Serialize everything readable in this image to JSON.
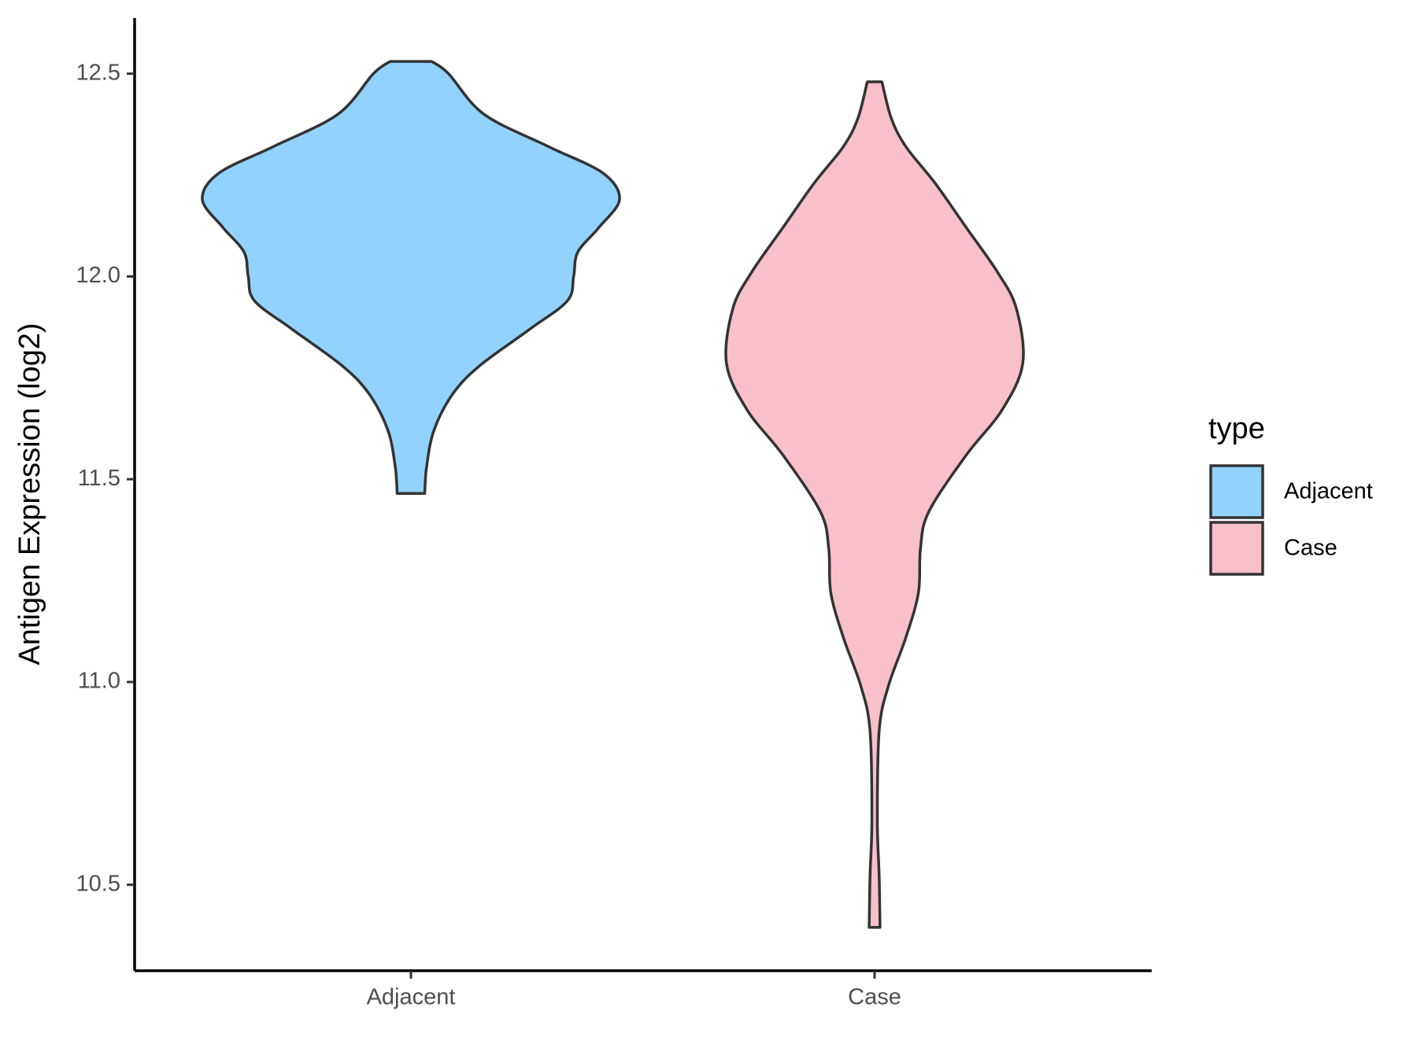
{
  "chart_data": {
    "type": "violin",
    "y_label": "Antigen Expression (log2)",
    "categories": [
      "Adjacent",
      "Case"
    ],
    "legend_title": "type",
    "legend_position": "right",
    "ylim": [
      10.288,
      12.637
    ],
    "yticks": [
      10.5,
      {
        "value": 11,
        "label": "11.0"
      },
      11.5,
      {
        "value": 12,
        "label": "12.0"
      },
      12.5
    ],
    "series": [
      {
        "name": "Adjacent",
        "color": "#91d3fe",
        "y": [
          12.53,
          12.5,
          12.4,
          12.32,
          12.255,
          12.19,
          12.12,
          12.06,
          12.0,
          11.94,
          11.87,
          11.78,
          11.71,
          11.62,
          11.53,
          11.465
        ],
        "density": [
          0.1,
          0.18,
          0.35,
          0.66,
          0.92,
          1.0,
          0.9,
          0.8,
          0.78,
          0.75,
          0.57,
          0.33,
          0.2,
          0.11,
          0.075,
          0.066
        ]
      },
      {
        "name": "Case",
        "color": "#f7c0cb",
        "y": [
          12.48,
          12.39,
          12.32,
          12.23,
          12.12,
          12.01,
          11.92,
          11.785,
          11.67,
          11.56,
          11.42,
          11.33,
          11.22,
          11.11,
          10.99,
          10.88,
          10.66,
          10.52,
          10.395
        ],
        "density": [
          0.035,
          0.08,
          0.15,
          0.29,
          0.44,
          0.59,
          0.68,
          0.71,
          0.61,
          0.44,
          0.26,
          0.22,
          0.21,
          0.15,
          0.066,
          0.022,
          0.013,
          0.022,
          0.026
        ]
      }
    ]
  }
}
